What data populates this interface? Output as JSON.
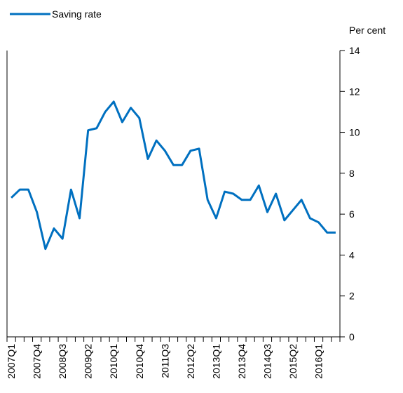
{
  "chart_data": {
    "type": "line",
    "y_axis_label": "Per cent",
    "categories": [
      "2007Q1",
      null,
      null,
      "2007Q4",
      null,
      null,
      "2008Q3",
      null,
      null,
      "2009Q2",
      null,
      null,
      "2010Q1",
      null,
      null,
      "2010Q4",
      null,
      null,
      "2011Q3",
      null,
      null,
      "2012Q2",
      null,
      null,
      "2013Q1",
      null,
      null,
      "2013Q4",
      null,
      null,
      "2014Q3",
      null,
      null,
      "2015Q2",
      null,
      null,
      "2016Q1",
      null,
      null
    ],
    "series": [
      {
        "name": "Saving rate",
        "color": "#0070c0",
        "values": [
          6.8,
          7.2,
          7.2,
          6.1,
          4.3,
          5.3,
          4.8,
          7.2,
          5.8,
          10.1,
          10.2,
          11.0,
          11.5,
          10.5,
          11.2,
          10.7,
          8.7,
          9.6,
          9.1,
          8.4,
          8.4,
          9.1,
          9.2,
          6.7,
          5.8,
          7.1,
          7.0,
          6.7,
          6.7,
          7.4,
          6.1,
          7.0,
          5.7,
          6.2,
          6.7,
          5.8,
          5.6,
          5.1,
          5.1
        ]
      }
    ],
    "ylim": [
      0,
      14
    ],
    "yticks": [
      0,
      2,
      4,
      6,
      8,
      10,
      12,
      14
    ],
    "y_axis_side": "right",
    "legend": "top-left",
    "grid": false
  }
}
